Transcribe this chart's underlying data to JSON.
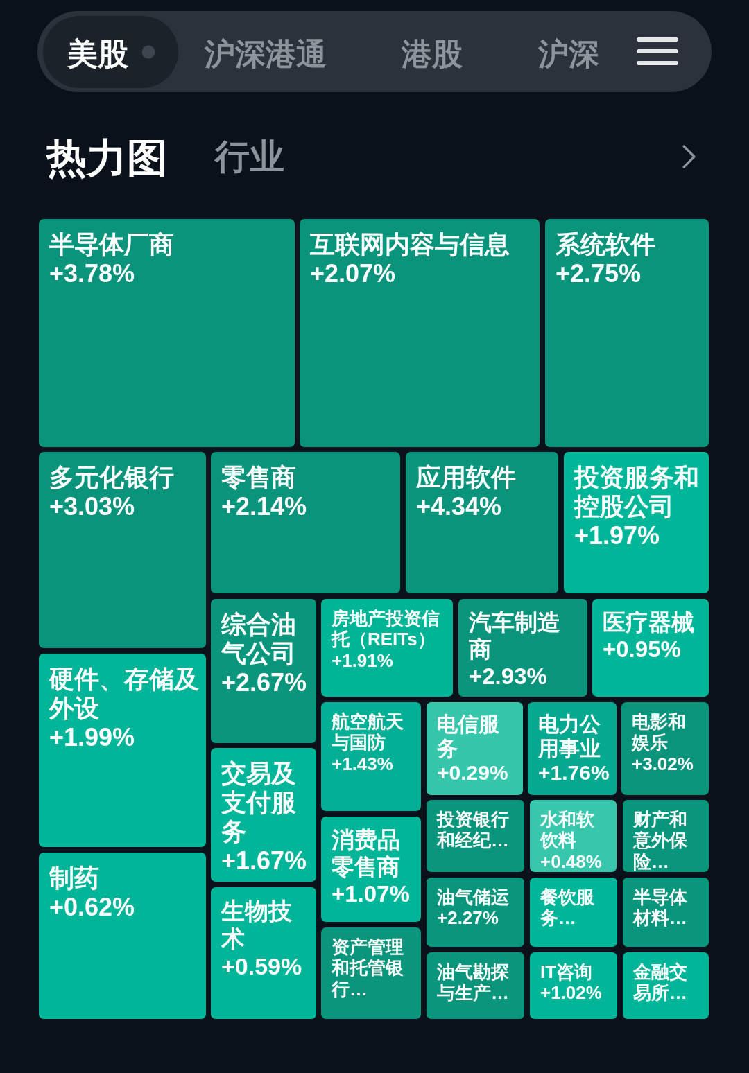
{
  "chart_data": {
    "type": "other",
    "title": "热力图",
    "subtitle": "行业",
    "annotations": [
      "美股",
      "沪深港通",
      "港股",
      "沪深"
    ],
    "categories": [
      "半导体厂商",
      "互联网内容与信息",
      "系统软件",
      "多元化银行",
      "零售商",
      "应用软件",
      "投资服务和控股公司",
      "综合油气公司",
      "房地产投资信托（REITs）",
      "汽车制造商",
      "医疗器械",
      "硬件、存储及外设",
      "航空航天与国防",
      "电信服务",
      "电力公用事业",
      "电影和娱乐",
      "交易及支付服务",
      "投资银行和经纪…",
      "水和软饮料",
      "财产和意外保险…",
      "消费品零售商",
      "制药",
      "油气储运",
      "餐饮服务…",
      "半导体材料…",
      "生物技术",
      "资产管理和托管银行…",
      "油气勘探与生产…",
      "IT咨询",
      "金融交易所…"
    ],
    "values": [
      3.78,
      2.07,
      2.75,
      3.03,
      2.14,
      4.34,
      1.97,
      2.67,
      1.91,
      2.93,
      0.95,
      1.99,
      1.43,
      0.29,
      1.76,
      3.02,
      1.67,
      null,
      0.48,
      null,
      1.07,
      0.62,
      2.27,
      null,
      null,
      0.59,
      null,
      null,
      1.02,
      null
    ],
    "value_labels": [
      "+3.78%",
      "+2.07%",
      "+2.75%",
      "+3.03%",
      "+2.14%",
      "+4.34%",
      "+1.97%",
      "+2.67%",
      "+1.91%",
      "+2.93%",
      "+0.95%",
      "+1.99%",
      "+1.43%",
      "+0.29%",
      "+1.76%",
      "+3.02%",
      "+1.67%",
      null,
      "+0.48%",
      null,
      "+1.07%",
      "+0.62%",
      "+2.27%",
      null,
      null,
      "+0.59%",
      null,
      null,
      "+1.02%",
      null
    ],
    "colors": [
      "#09947b",
      "#09947b",
      "#09947b",
      "#09947b",
      "#09947b",
      "#09947b",
      "#00b699",
      "#0a967d",
      "#00b496",
      "#09947b",
      "#00b699",
      "#00b598",
      "#03b095",
      "#36c6ac",
      "#05a98f",
      "#09947b",
      "#00b598",
      "#0a967d",
      "#38c7ad",
      "#0a967d",
      "#00b598",
      "#00b598",
      "#0a967d",
      "#00b598",
      "#0a967d",
      "#00b598",
      "#0a967d",
      "#0a967d",
      "#00b598",
      "#00b598"
    ]
  }
}
